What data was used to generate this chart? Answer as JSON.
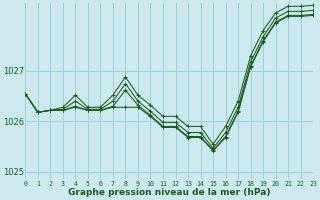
{
  "title": "Graphe pression niveau de la mer (hPa)",
  "background_color": "#cce9f0",
  "grid_color": "#a0cdd8",
  "line_color": "#1a5c1a",
  "xlim": [
    0,
    23
  ],
  "ylim": [
    1024.85,
    1028.35
  ],
  "yticks": [
    1025,
    1026,
    1027
  ],
  "hours": [
    0,
    1,
    2,
    3,
    4,
    5,
    6,
    7,
    8,
    9,
    10,
    11,
    12,
    13,
    14,
    15,
    16,
    17,
    18,
    19,
    20,
    21,
    22,
    23
  ],
  "series": [
    [
      1026.55,
      1026.18,
      1026.22,
      1026.22,
      1026.28,
      1026.22,
      1026.22,
      1026.28,
      1026.28,
      1026.28,
      1026.1,
      1025.88,
      1025.88,
      1025.68,
      1025.68,
      1025.42,
      1025.68,
      1026.18,
      1027.08,
      1027.58,
      1027.95,
      1028.08,
      1028.08,
      1028.1
    ],
    [
      1026.55,
      1026.18,
      1026.22,
      1026.22,
      1026.3,
      1026.22,
      1026.22,
      1026.3,
      1026.62,
      1026.32,
      1026.12,
      1025.9,
      1025.9,
      1025.7,
      1025.7,
      1025.43,
      1025.7,
      1026.2,
      1027.1,
      1027.6,
      1027.97,
      1028.1,
      1028.1,
      1028.12
    ],
    [
      1026.55,
      1026.18,
      1026.22,
      1026.24,
      1026.4,
      1026.24,
      1026.24,
      1026.4,
      1026.75,
      1026.4,
      1026.2,
      1025.98,
      1025.98,
      1025.78,
      1025.78,
      1025.47,
      1025.78,
      1026.28,
      1027.18,
      1027.68,
      1028.05,
      1028.18,
      1028.18,
      1028.2
    ],
    [
      1026.55,
      1026.18,
      1026.22,
      1026.28,
      1026.52,
      1026.28,
      1026.28,
      1026.52,
      1026.88,
      1026.52,
      1026.32,
      1026.1,
      1026.1,
      1025.9,
      1025.9,
      1025.55,
      1025.9,
      1026.4,
      1027.3,
      1027.8,
      1028.15,
      1028.28,
      1028.28,
      1028.3
    ]
  ]
}
